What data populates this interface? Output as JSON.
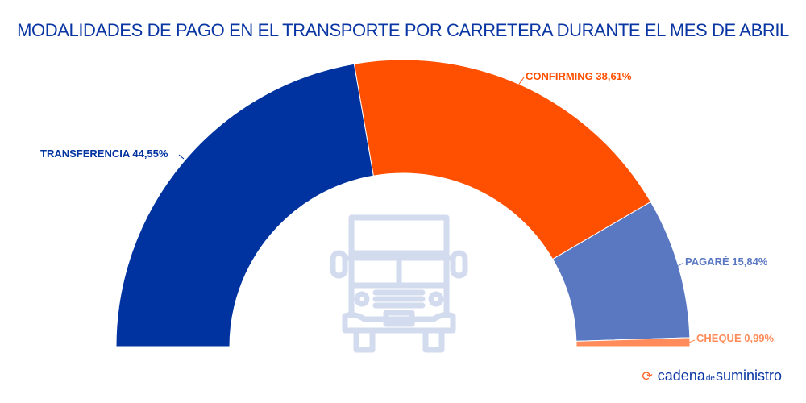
{
  "chart_data": {
    "type": "pie",
    "subtype": "half-donut",
    "title": "MODALIDADES DE PAGO EN EL TRANSPORTE POR CARRETERA DURANTE EL MES DE ABRIL",
    "series": [
      {
        "name": "TRANSFERENCIA",
        "value": 44.55,
        "label": "TRANSFERENCIA 44,55%",
        "color": "#0033a0"
      },
      {
        "name": "CONFIRMING",
        "value": 38.61,
        "label": "CONFIRMING 38,61%",
        "color": "#ff4f00"
      },
      {
        "name": "PAGARÉ",
        "value": 15.84,
        "label": "PAGARÉ 15,84%",
        "color": "#5a78c2"
      },
      {
        "name": "CHEQUE",
        "value": 0.99,
        "label": "CHEQUE 0,99%",
        "color": "#ff8c5a"
      }
    ]
  },
  "brand": {
    "part1": "cadena",
    "part2": "de",
    "part3": "suministro",
    "icon": "sync-arrows-icon"
  }
}
